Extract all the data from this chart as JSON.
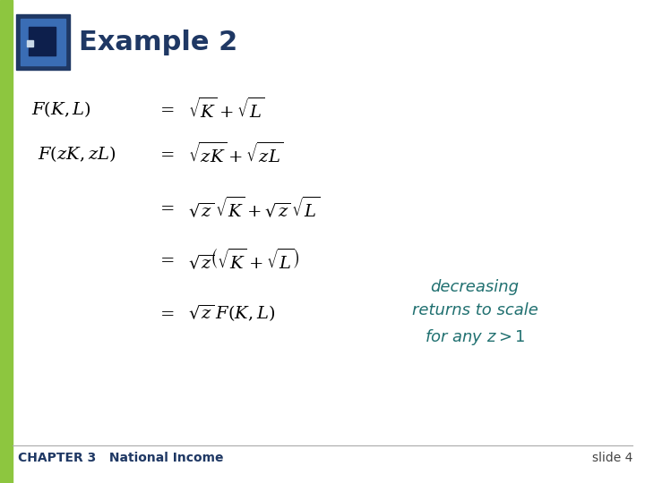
{
  "background_color": "#ffffff",
  "left_bar_color": "#8dc63f",
  "title_text": "Example 2",
  "title_color": "#1f3864",
  "title_fontsize": 22,
  "footer_chapter": "CHAPTER 3   National Income",
  "footer_slide": "slide 4",
  "footer_color": "#1f3864",
  "math_color": "#000000",
  "eq_fontsize": 14,
  "note_color": "#207070",
  "note_fontsize": 13,
  "footer_fontsize": 10,
  "icon_outer_color": "#1f3864",
  "icon_mid_color": "#3a6db5",
  "icon_inner_color": "#0d1f4c",
  "icon_highlight_color": "#c8d8e8"
}
